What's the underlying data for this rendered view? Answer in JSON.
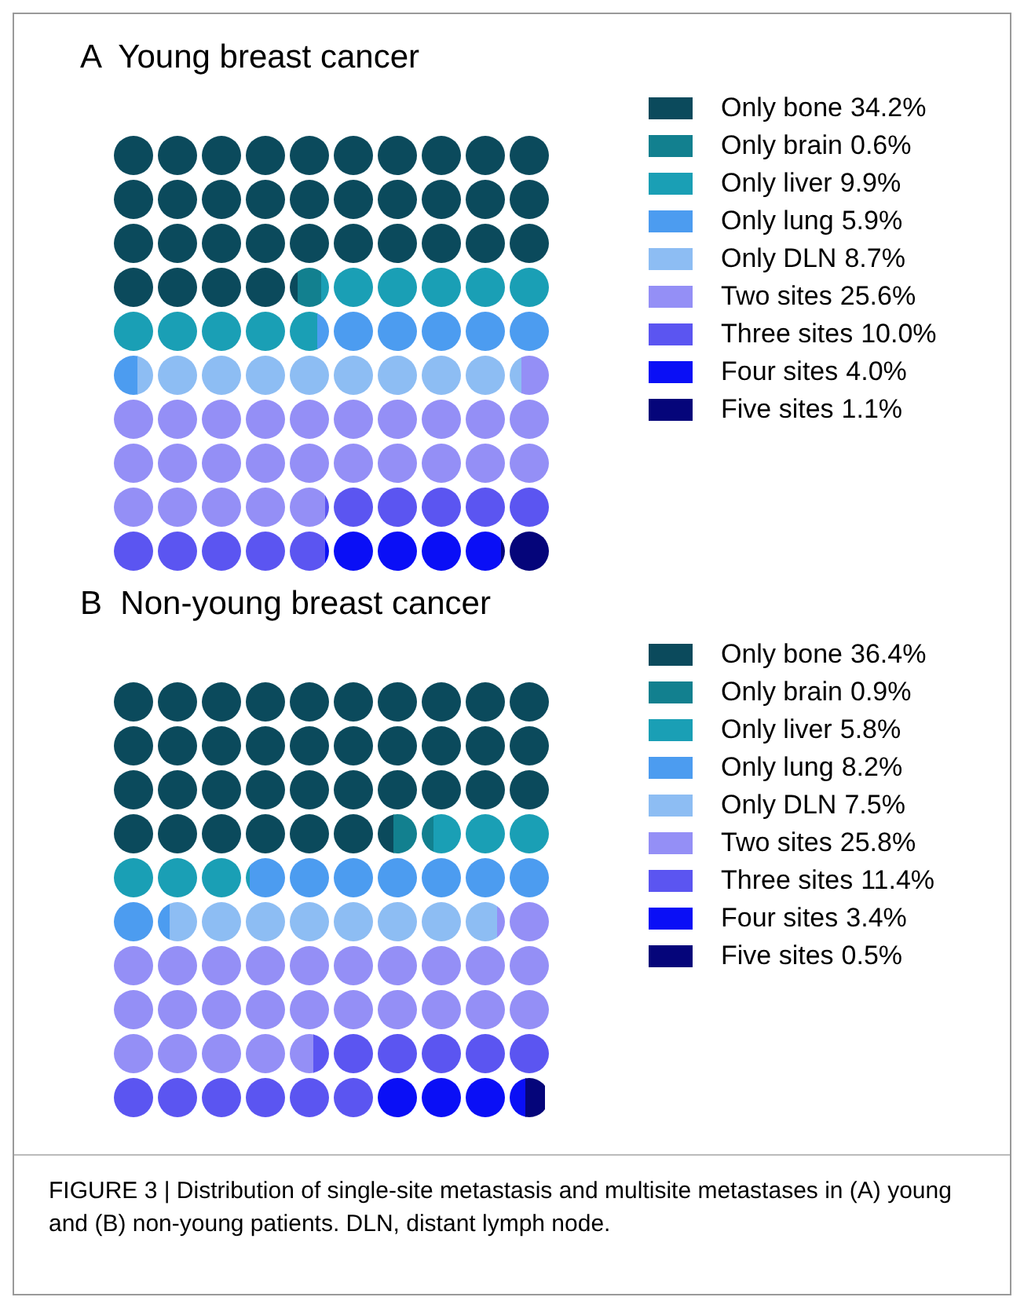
{
  "chart_data": [
    {
      "type": "other",
      "title": "A  Young breast cancer",
      "categories": [
        "Only bone",
        "Only brain",
        "Only liver",
        "Only lung",
        "Only DLN",
        "Two sites",
        "Three sites",
        "Four sites",
        "Five sites"
      ],
      "values": [
        34.2,
        0.6,
        9.9,
        5.9,
        8.7,
        25.6,
        10.0,
        4.0,
        1.1
      ],
      "value_labels": [
        "34.2%",
        "0.6%",
        "9.9%",
        "5.9%",
        "8.7%",
        "25.6%",
        "10.0%",
        "4.0%",
        "1.1%"
      ],
      "colors": [
        "#0b4a5c",
        "#12808f",
        "#1a9fb5",
        "#4c9cf0",
        "#8dbdf3",
        "#948ff6",
        "#5b55f1",
        "#0a0ff6",
        "#05057a"
      ]
    },
    {
      "type": "other",
      "title": "B  Non-young breast cancer",
      "categories": [
        "Only bone",
        "Only brain",
        "Only liver",
        "Only lung",
        "Only DLN",
        "Two sites",
        "Three sites",
        "Four sites",
        "Five sites"
      ],
      "values": [
        36.4,
        0.9,
        5.8,
        8.2,
        7.5,
        25.8,
        11.4,
        3.4,
        0.5
      ],
      "value_labels": [
        "36.4%",
        "0.9%",
        "5.8%",
        "8.2%",
        "7.5%",
        "25.8%",
        "11.4%",
        "3.4%",
        "0.5%"
      ],
      "colors": [
        "#0b4a5c",
        "#12808f",
        "#1a9fb5",
        "#4c9cf0",
        "#8dbdf3",
        "#948ff6",
        "#5b55f1",
        "#0a0ff6",
        "#05057a"
      ],
      "annotations": [
        "FIGURE 3 | Distribution of single-site metastasis and multisite metastases in (A) young and (B) non-young patients. DLN, distant lymph node."
      ]
    }
  ]
}
